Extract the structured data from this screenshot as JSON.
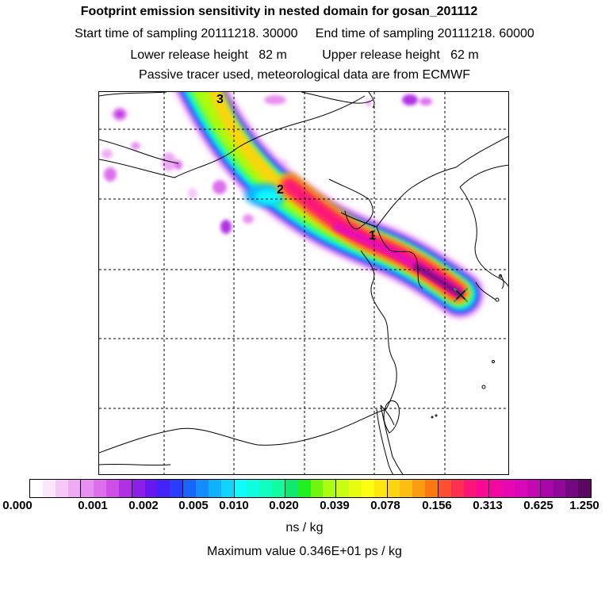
{
  "header": {
    "title": "Footprint emission sensitivity in nested domain for gosan_201112",
    "sampling_line": "Start time of sampling 20111218. 30000     End time of sampling 20111218. 60000",
    "release_line": "Lower release height   82 m          Upper release height   62 m",
    "tracer_line": "Passive tracer used, meteorological data are from ECMWF"
  },
  "map": {
    "point_labels": [
      "1",
      "2",
      "3"
    ],
    "receptor_marker": "x-marker-icon"
  },
  "colorbar": {
    "tick_labels": [
      "0.000",
      "0.001",
      "0.002",
      "0.005",
      "0.010",
      "0.020",
      "0.039",
      "0.078",
      "0.156",
      "0.313",
      "0.625",
      "1.250"
    ],
    "colors": [
      "#ffffff",
      "#fce6fc",
      "#f6c8f8",
      "#eeaaf4",
      "#e890f0",
      "#dc70ec",
      "#cc50e8",
      "#b030e4",
      "#8a20e8",
      "#6618f0",
      "#4422f8",
      "#2a3cfc",
      "#1a66fc",
      "#148cfc",
      "#10b0fc",
      "#10d4fc",
      "#10fcfc",
      "#10fce0",
      "#10fcc0",
      "#10fca0",
      "#10e870",
      "#20f020",
      "#70f410",
      "#a8fc10",
      "#c8fc10",
      "#e8fc10",
      "#fcfc10",
      "#fce810",
      "#fcd410",
      "#fcbe10",
      "#fc9c10",
      "#fc7810",
      "#fc5030",
      "#fc3050",
      "#fc1478",
      "#fc0896",
      "#f408a4",
      "#e808b0",
      "#d808b8",
      "#c408b4",
      "#a808a8",
      "#900898",
      "#740880",
      "#5a0860"
    ],
    "units": "ns / kg"
  },
  "footer": {
    "max_value": "Maximum value  0.346E+01 ps / kg"
  }
}
